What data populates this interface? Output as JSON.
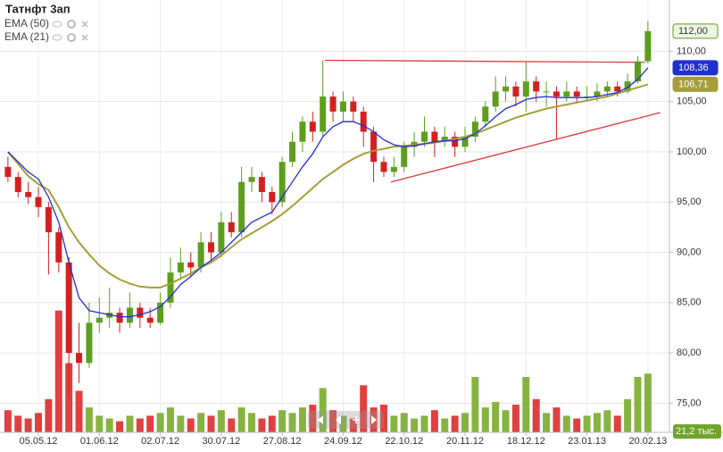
{
  "chart_data": {
    "type": "candlestick",
    "title": "Татнфт 3ап",
    "categories": [
      null,
      null,
      null,
      "05.05.12",
      null,
      null,
      null,
      null,
      null,
      "01.06.12",
      null,
      null,
      null,
      null,
      null,
      "02.07.12",
      null,
      null,
      null,
      null,
      null,
      "30.07.12",
      null,
      null,
      null,
      null,
      null,
      "27.08.12",
      null,
      null,
      null,
      null,
      null,
      "24.09.12",
      null,
      null,
      null,
      null,
      null,
      "22.10.12",
      null,
      null,
      null,
      null,
      null,
      "20.11.12",
      null,
      null,
      null,
      null,
      null,
      "18.12.12",
      null,
      null,
      null,
      null,
      null,
      "23.01.13",
      null,
      null,
      null,
      null,
      null,
      "20.02.13"
    ],
    "xlim": [
      -0.78,
      65.12
    ],
    "open": [
      98.5,
      97.5,
      96,
      95.5,
      94.5,
      92,
      89,
      80,
      79,
      83,
      83.5,
      84,
      83,
      84.5,
      83.5,
      83,
      85,
      88,
      89,
      88.5,
      91,
      90,
      93,
      92,
      97,
      97.5,
      96,
      95,
      99,
      101,
      103,
      102,
      105.5,
      104,
      105,
      104,
      102,
      99,
      98,
      98.5,
      100.5,
      101,
      102,
      101,
      101.5,
      100.5,
      101.5,
      103,
      104.5,
      106,
      106.5,
      105.5,
      107,
      106,
      106,
      105.5,
      106,
      105.5,
      105.5,
      106,
      106.5,
      106,
      107,
      109
    ],
    "high": [
      99.5,
      98,
      97,
      96.5,
      95,
      92.5,
      89.5,
      83,
      85,
      85.5,
      86.5,
      84.5,
      86,
      85,
      84.5,
      86,
      89.5,
      90.5,
      90,
      92,
      92,
      94,
      94,
      98.5,
      98.5,
      98,
      96.5,
      99.5,
      102,
      103.5,
      104,
      109.1,
      106,
      106,
      105.5,
      104.5,
      102.5,
      99.5,
      99.5,
      101,
      102,
      103.5,
      102.5,
      102.5,
      102,
      102.5,
      103.5,
      105,
      107.5,
      107.5,
      107,
      109,
      107.5,
      107,
      106.5,
      107,
      106.5,
      106.5,
      106.8,
      107,
      107,
      107.8,
      109.5,
      113
    ],
    "low": [
      97,
      95.5,
      94.8,
      93.5,
      87.8,
      88,
      75.5,
      77,
      78.5,
      82,
      82.5,
      82,
      82.5,
      82.5,
      82.5,
      82.8,
      84.5,
      87.5,
      87.5,
      88,
      89,
      89.5,
      91.5,
      91.5,
      96,
      95,
      93.8,
      94.5,
      98.5,
      100,
      101,
      101.5,
      103,
      103,
      103,
      100.5,
      97,
      97.5,
      97.5,
      98,
      99.5,
      100.5,
      99.5,
      100.5,
      99.5,
      100,
      101,
      102.5,
      104,
      105,
      104.5,
      104,
      105,
      104.5,
      101.3,
      105,
      104.8,
      105,
      105,
      105.5,
      105.5,
      105.8,
      106.8,
      108.8
    ],
    "close": [
      97.5,
      96,
      95.5,
      94.5,
      92,
      89,
      80,
      79,
      83,
      83.5,
      84,
      83,
      84.5,
      83.5,
      83,
      85,
      88,
      89,
      88.5,
      91,
      90,
      93,
      92,
      97,
      97.5,
      96,
      95,
      99,
      101,
      103,
      102,
      105.5,
      104,
      105,
      104,
      102,
      99,
      98,
      98.5,
      100.5,
      101,
      102,
      101,
      101.5,
      100.5,
      101.5,
      103,
      104.5,
      106,
      106.5,
      105.5,
      107,
      106,
      106,
      105.5,
      106,
      105.5,
      105.5,
      106,
      106.5,
      106,
      107,
      109,
      112
    ],
    "last_close_label": "112,00",
    "up_color": "#5e9e1e",
    "down_color": "#d42020",
    "series": [
      {
        "name": "EMA (50)",
        "color": "#a69d3a",
        "last_label": "106,71",
        "values": [
          100,
          98.8,
          97.6,
          96.8,
          96.2,
          94.5,
          92.5,
          91,
          89.8,
          88.7,
          87.9,
          87.3,
          86.9,
          86.6,
          86.5,
          86.5,
          86.9,
          87.4,
          87.9,
          88.5,
          89,
          89.7,
          90.5,
          91.3,
          91.9,
          92.5,
          93.1,
          93.8,
          94.6,
          95.5,
          96.4,
          97.3,
          98,
          98.7,
          99.3,
          99.8,
          100.1,
          100.3,
          100.5,
          100.6,
          100.7,
          100.8,
          100.9,
          101.1,
          101.3,
          101.5,
          101.8,
          102.2,
          102.6,
          103,
          103.4,
          103.7,
          104,
          104.3,
          104.5,
          104.7,
          104.9,
          105.1,
          105.3,
          105.5,
          105.8,
          106.1,
          106.4,
          106.71
        ]
      },
      {
        "name": "EMA (21)",
        "color": "#1f2fd0",
        "last_label": "108,36",
        "values": [
          100,
          99,
          98,
          97.3,
          95.5,
          93,
          89,
          85.5,
          84.2,
          84,
          83.8,
          83.6,
          83.6,
          83.8,
          84.1,
          84.6,
          85.6,
          86.8,
          87.6,
          88.5,
          89.2,
          90,
          91,
          92,
          93,
          93.5,
          94,
          95.5,
          97,
          98.5,
          99.8,
          101.5,
          102.5,
          103,
          103,
          102.6,
          102,
          101.2,
          100.7,
          100.5,
          100.6,
          100.8,
          101,
          101.1,
          101.1,
          101.3,
          101.8,
          102.6,
          103.5,
          104.3,
          104.7,
          105.2,
          105.4,
          105.5,
          105.4,
          105.4,
          105.4,
          105.4,
          105.5,
          105.7,
          105.9,
          106.4,
          107.2,
          108.36
        ]
      }
    ],
    "volume": {
      "values": [
        8,
        6,
        5,
        7,
        12,
        44,
        25,
        15,
        9,
        6,
        5,
        4,
        6,
        5,
        6,
        7,
        9,
        6,
        5,
        7,
        6,
        8,
        5,
        9,
        7,
        5,
        6,
        8,
        7,
        9,
        10,
        16,
        8,
        6,
        5,
        17,
        9,
        10,
        6,
        7,
        5,
        6,
        8,
        5,
        6,
        7,
        20,
        9,
        11,
        8,
        10,
        20,
        12,
        7,
        9,
        6,
        5,
        6,
        7,
        8,
        6,
        12,
        20,
        21.2
      ],
      "last_label": "21,2 тыс."
    },
    "y2lim": [
      0,
      50
    ],
    "ylim": [
      72.1,
      115.1
    ],
    "yticks": [
      {
        "value": 75,
        "label": "75,00"
      },
      {
        "value": 80,
        "label": "80,00"
      },
      {
        "value": 85,
        "label": "85,00"
      },
      {
        "value": 90,
        "label": "90,00"
      },
      {
        "value": 95,
        "label": "95,00"
      },
      {
        "value": 100,
        "label": "100,00"
      },
      {
        "value": 105,
        "label": "105,00"
      },
      {
        "value": 110,
        "label": "110,00"
      }
    ],
    "trendlines": [
      {
        "color": "#d43c3c",
        "x": [
          31.2,
          62.7
        ],
        "values": [
          109.1,
          108.9
        ]
      },
      {
        "color": "#d43c3c",
        "x": [
          37.7,
          64.2
        ],
        "values": [
          97.0,
          103.9
        ]
      }
    ],
    "grid": true
  }
}
